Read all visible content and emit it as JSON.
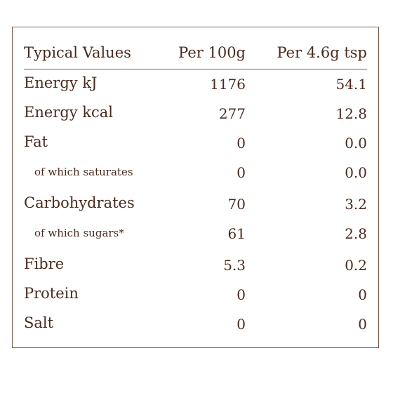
{
  "table": {
    "headers": {
      "label": "Typical Values",
      "per_100g": "Per 100g",
      "per_tsp": "Per 4.6g tsp"
    },
    "rows": [
      {
        "label": "Energy kJ",
        "per_100g": "1176",
        "per_tsp": "54.1",
        "sub": false
      },
      {
        "label": "Energy kcal",
        "per_100g": "277",
        "per_tsp": "12.8",
        "sub": false
      },
      {
        "label": "Fat",
        "per_100g": "0",
        "per_tsp": "0.0",
        "sub": false
      },
      {
        "label": "of which saturates",
        "per_100g": "0",
        "per_tsp": "0.0",
        "sub": true
      },
      {
        "label": "Carbohydrates",
        "per_100g": "70",
        "per_tsp": "3.2",
        "sub": false
      },
      {
        "label": "of which sugars*",
        "per_100g": "61",
        "per_tsp": "2.8",
        "sub": true
      },
      {
        "label": "Fibre",
        "per_100g": "5.3",
        "per_tsp": "0.2",
        "sub": false
      },
      {
        "label": "Protein",
        "per_100g": "0",
        "per_tsp": "0",
        "sub": false
      },
      {
        "label": "Salt",
        "per_100g": "0",
        "per_tsp": "0",
        "sub": false
      }
    ]
  },
  "colors": {
    "text": "#4a2a1c",
    "border": "#7a5a48"
  }
}
